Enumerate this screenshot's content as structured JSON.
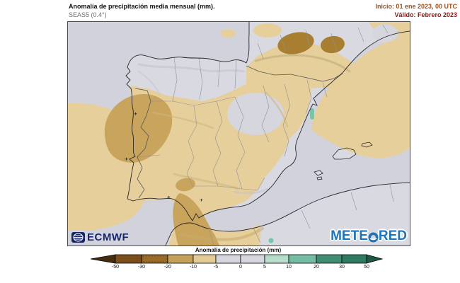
{
  "header": {
    "title": "Anomalía de precipitación media mensual (mm).",
    "subtitle": "SEAS5 (0.4°)",
    "init_label": "Inicio: 01 ene 2023, 00 UTC",
    "valid_label": "Válido: Febrero 2023"
  },
  "map": {
    "sea_color": "#d2d2dc",
    "land_color": "#d9d9e2",
    "regions": [
      {
        "area": "Atlántico al oeste de Portugal",
        "anomaly": "-10 a -5 mm"
      },
      {
        "area": "Portugal centro y costa",
        "anomaly": "-20 a -10 mm"
      },
      {
        "area": "Cádiz / Estrecho de Gibraltar",
        "anomaly": "-20 a -10 mm"
      },
      {
        "area": "Pirineos (dos núcleos)",
        "anomaly": "-30 a -20 mm"
      },
      {
        "area": "Mediterráneo frente a Cataluña y Golfo de León",
        "anomaly": "-10 a -5 mm"
      },
      {
        "area": "Sur de Portugal, Extremadura y Andalucía occidental",
        "anomaly": "-10 a -5 mm"
      },
      {
        "area": "Costa de Valencia (punto)",
        "anomaly": "5 a 10 mm"
      },
      {
        "area": "Noroeste, centro-norte y sureste peninsular",
        "anomaly": "-5 a 5 mm"
      },
      {
        "area": "Norte de Marruecos",
        "anomaly": "-10 a -5 mm"
      }
    ]
  },
  "branding": {
    "ecmwf": "ECMWF",
    "ecmwf_color": "#16246b",
    "meteored_full": "METEORED",
    "meteored_prefix": "METE",
    "meteored_suffix": "RED",
    "meteored_color": "#1b74bc"
  },
  "legend": {
    "title": "Anomalía de precipitación (mm)",
    "ticks": [
      "-50",
      "-30",
      "-20",
      "-10",
      "-5",
      "0",
      "5",
      "10",
      "20",
      "30",
      "50"
    ],
    "segment_colors": [
      "#7a4f1b",
      "#996c2a",
      "#c2a25b",
      "#e2cb95",
      "#d6d6de",
      "#d6d6de",
      "#b5dcca",
      "#74bda2",
      "#3f8e74",
      "#2f7a60"
    ],
    "arrow_left_color": "#452d10",
    "arrow_right_color": "#1d5a44"
  }
}
